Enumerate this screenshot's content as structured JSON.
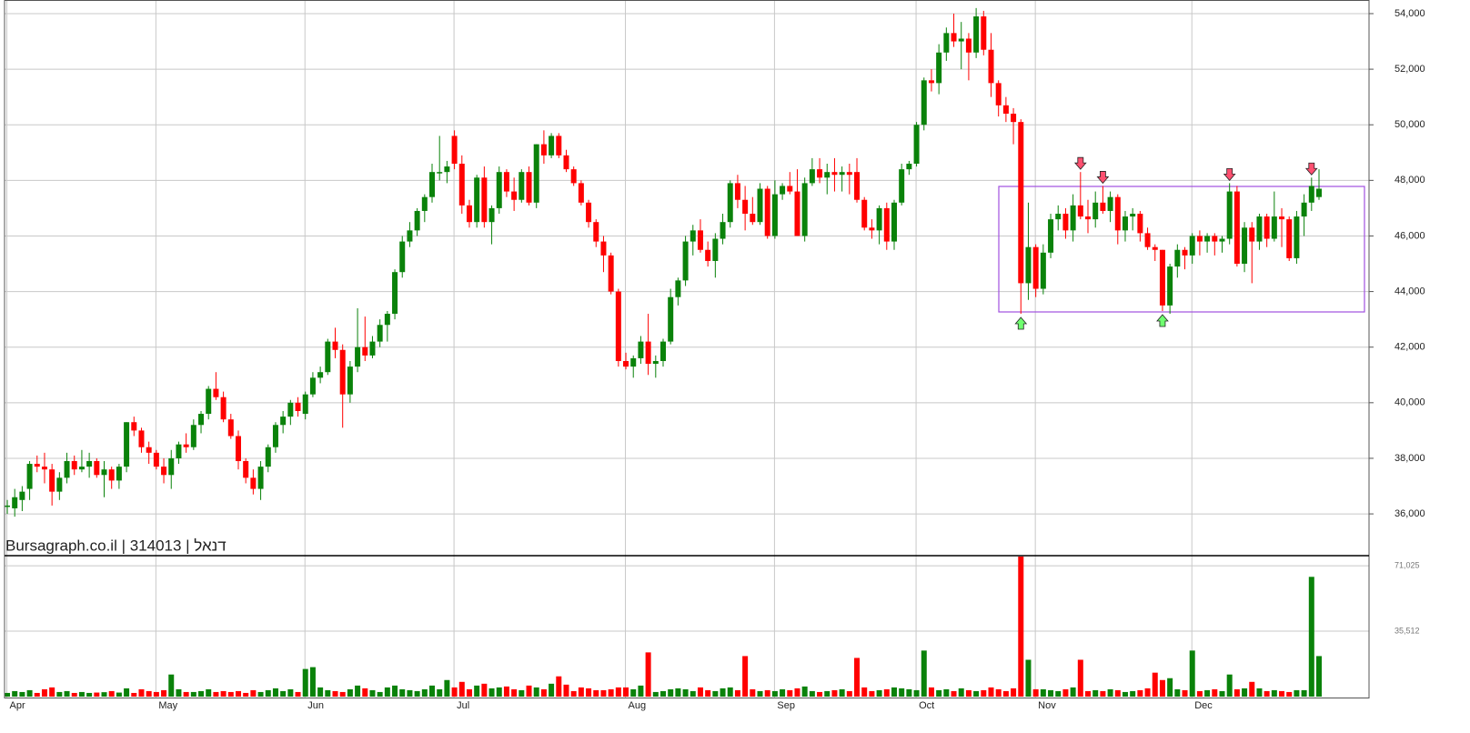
{
  "chart_data": {
    "type": "candlestick",
    "source_label": "Bursagraph.co.il | 314013 | דנאל",
    "categories": [
      "Apr",
      null,
      null,
      null,
      null,
      null,
      null,
      null,
      null,
      null,
      null,
      null,
      null,
      null,
      null,
      null,
      null,
      null,
      null,
      null,
      "May",
      null,
      null,
      null,
      null,
      null,
      null,
      null,
      null,
      null,
      null,
      null,
      null,
      null,
      null,
      null,
      null,
      null,
      null,
      null,
      "Jun",
      null,
      null,
      null,
      null,
      null,
      null,
      null,
      null,
      null,
      null,
      null,
      null,
      null,
      null,
      null,
      null,
      null,
      null,
      null,
      "Jul",
      null,
      null,
      null,
      null,
      null,
      null,
      null,
      null,
      null,
      null,
      null,
      null,
      null,
      null,
      null,
      null,
      null,
      null,
      null,
      null,
      null,
      null,
      "Aug",
      null,
      null,
      null,
      null,
      null,
      null,
      null,
      null,
      null,
      null,
      null,
      null,
      null,
      null,
      null,
      null,
      null,
      null,
      null,
      "Sep",
      null,
      null,
      null,
      null,
      null,
      null,
      null,
      null,
      null,
      null,
      null,
      null,
      null,
      null,
      null,
      null,
      null,
      null,
      "Oct",
      null,
      null,
      null,
      null,
      null,
      null,
      null,
      null,
      null,
      null,
      null,
      null,
      null,
      null,
      null,
      "Nov",
      null,
      null,
      null,
      null,
      null,
      null,
      null,
      null,
      null,
      null,
      null,
      null,
      null,
      null,
      null,
      null,
      null,
      null,
      null,
      null,
      "Dec",
      null,
      null,
      null,
      null,
      null,
      null,
      null,
      null,
      null,
      null,
      null,
      null,
      null,
      null,
      null,
      null,
      null
    ],
    "candles": [
      [
        36300,
        36500,
        36000,
        36300,
        2000
      ],
      [
        36200,
        36900,
        35900,
        36600,
        3000
      ],
      [
        36500,
        37000,
        36100,
        36800,
        2500
      ],
      [
        36900,
        37900,
        36500,
        37800,
        3500
      ],
      [
        37800,
        38100,
        37500,
        37700,
        2000
      ],
      [
        37700,
        38200,
        37100,
        37600,
        4000
      ],
      [
        37600,
        37800,
        36300,
        36800,
        5000
      ],
      [
        36800,
        37500,
        36500,
        37300,
        2500
      ],
      [
        37300,
        38200,
        37100,
        37900,
        3000
      ],
      [
        37900,
        38100,
        37400,
        37600,
        2000
      ],
      [
        37600,
        38300,
        37500,
        37700,
        2500
      ],
      [
        37700,
        38200,
        37300,
        37900,
        2000
      ],
      [
        37900,
        38000,
        37300,
        37400,
        2200
      ],
      [
        37400,
        37900,
        36600,
        37600,
        2400
      ],
      [
        37600,
        37700,
        36900,
        37200,
        3000
      ],
      [
        37200,
        37800,
        36900,
        37700,
        2200
      ],
      [
        37700,
        39300,
        37500,
        39300,
        4500
      ],
      [
        39300,
        39500,
        38800,
        39000,
        2000
      ],
      [
        39000,
        39100,
        38200,
        38400,
        4000
      ],
      [
        38400,
        38600,
        37800,
        38200,
        3000
      ],
      [
        38200,
        38300,
        37600,
        37700,
        2500
      ],
      [
        37700,
        38000,
        37100,
        37400,
        3500
      ],
      [
        37400,
        38300,
        36900,
        38000,
        12000
      ],
      [
        38000,
        38600,
        37800,
        38500,
        4000
      ],
      [
        38500,
        38900,
        38200,
        38400,
        2500
      ],
      [
        38400,
        39400,
        38300,
        39200,
        2500
      ],
      [
        39200,
        39700,
        38900,
        39600,
        3000
      ],
      [
        39600,
        40600,
        39400,
        40500,
        4000
      ],
      [
        40500,
        41100,
        40100,
        40200,
        2500
      ],
      [
        40200,
        40400,
        39300,
        39400,
        3000
      ],
      [
        39400,
        39600,
        38700,
        38800,
        2500
      ],
      [
        38800,
        39000,
        37600,
        37900,
        3000
      ],
      [
        37900,
        38000,
        37100,
        37300,
        2000
      ],
      [
        37300,
        37600,
        36700,
        36900,
        3500
      ],
      [
        36900,
        37900,
        36500,
        37700,
        2500
      ],
      [
        37700,
        38500,
        37500,
        38400,
        3500
      ],
      [
        38400,
        39300,
        38200,
        39200,
        4500
      ],
      [
        39200,
        39700,
        38900,
        39500,
        3000
      ],
      [
        39500,
        40100,
        39200,
        40000,
        4000
      ],
      [
        40000,
        40200,
        39500,
        39700,
        2500
      ],
      [
        39600,
        40400,
        39400,
        40300,
        15000
      ],
      [
        40300,
        41100,
        40200,
        40900,
        16000
      ],
      [
        40900,
        41300,
        40700,
        41100,
        5000
      ],
      [
        41100,
        42300,
        41000,
        42200,
        3500
      ],
      [
        42200,
        42700,
        41600,
        41900,
        3000
      ],
      [
        41900,
        42100,
        39100,
        40300,
        2500
      ],
      [
        40300,
        41500,
        40000,
        41300,
        4000
      ],
      [
        41300,
        43400,
        41100,
        42000,
        6000
      ],
      [
        42000,
        43100,
        41500,
        41700,
        4500
      ],
      [
        41700,
        42400,
        41600,
        42200,
        3500
      ],
      [
        42200,
        43000,
        42000,
        42800,
        2500
      ],
      [
        42800,
        43300,
        42200,
        43200,
        5000
      ],
      [
        43200,
        44800,
        43000,
        44700,
        6000
      ],
      [
        44700,
        46000,
        44500,
        45800,
        4000
      ],
      [
        45800,
        46500,
        45600,
        46200,
        3500
      ],
      [
        46200,
        47000,
        46000,
        46900,
        3000
      ],
      [
        46900,
        47500,
        46500,
        47400,
        4000
      ],
      [
        47400,
        48600,
        47200,
        48300,
        6000
      ],
      [
        48300,
        49600,
        48000,
        48300,
        4000
      ],
      [
        48300,
        48700,
        47900,
        48500,
        9000
      ],
      [
        49600,
        49800,
        48400,
        48600,
        5000
      ],
      [
        48600,
        48900,
        46800,
        47100,
        8000
      ],
      [
        47100,
        47300,
        46300,
        46500,
        4000
      ],
      [
        46500,
        48200,
        46300,
        48100,
        6000
      ],
      [
        48100,
        48500,
        46300,
        46500,
        7000
      ],
      [
        46500,
        47100,
        45700,
        47000,
        4500
      ],
      [
        47000,
        48500,
        46800,
        48300,
        5000
      ],
      [
        48300,
        48400,
        47400,
        47600,
        5500
      ],
      [
        47600,
        48100,
        46900,
        47300,
        4000
      ],
      [
        47300,
        48400,
        47200,
        48300,
        3500
      ],
      [
        48300,
        48500,
        47100,
        47200,
        6000
      ],
      [
        47200,
        49300,
        47000,
        49300,
        5000
      ],
      [
        49300,
        49800,
        48600,
        48900,
        4000
      ],
      [
        48900,
        49700,
        48800,
        49600,
        7000
      ],
      [
        49600,
        49700,
        48800,
        48900,
        11000
      ],
      [
        48900,
        49100,
        48300,
        48400,
        6500
      ],
      [
        48400,
        48500,
        47800,
        47900,
        3000
      ],
      [
        47900,
        48000,
        47100,
        47200,
        5000
      ],
      [
        47200,
        47300,
        46300,
        46500,
        4500
      ],
      [
        46500,
        46600,
        45600,
        45800,
        3500
      ],
      [
        45800,
        46000,
        44700,
        45300,
        3500
      ],
      [
        45300,
        45400,
        43900,
        44000,
        4000
      ],
      [
        44000,
        44100,
        41300,
        41500,
        5000
      ],
      [
        41500,
        41800,
        41200,
        41300,
        5000
      ],
      [
        41300,
        41700,
        40900,
        41600,
        4000
      ],
      [
        41600,
        42400,
        41400,
        42200,
        6000
      ],
      [
        42200,
        43200,
        41000,
        41400,
        24000
      ],
      [
        41400,
        41700,
        40900,
        41500,
        2500
      ],
      [
        41500,
        42300,
        41300,
        42200,
        3000
      ],
      [
        42200,
        44100,
        42100,
        43800,
        4000
      ],
      [
        43800,
        44500,
        43500,
        44400,
        4500
      ],
      [
        44400,
        46000,
        44200,
        45800,
        4000
      ],
      [
        45800,
        46400,
        45300,
        46200,
        3000
      ],
      [
        46200,
        46600,
        45400,
        45500,
        5000
      ],
      [
        45500,
        45800,
        44900,
        45100,
        3500
      ],
      [
        45100,
        46100,
        44500,
        45900,
        3000
      ],
      [
        45900,
        46800,
        45700,
        46500,
        4500
      ],
      [
        46500,
        48000,
        46300,
        47900,
        5000
      ],
      [
        47900,
        48200,
        47000,
        47300,
        3500
      ],
      [
        47300,
        47800,
        46200,
        46800,
        22000
      ],
      [
        46800,
        47400,
        46400,
        46500,
        4000
      ],
      [
        46500,
        47900,
        46400,
        47700,
        3000
      ],
      [
        47700,
        47800,
        45900,
        46000,
        3500
      ],
      [
        46000,
        48000,
        45900,
        47500,
        3000
      ],
      [
        47500,
        47900,
        47300,
        47800,
        4000
      ],
      [
        47800,
        48300,
        47500,
        47600,
        3500
      ],
      [
        47600,
        48400,
        46000,
        46000,
        4500
      ],
      [
        46000,
        48100,
        45800,
        47900,
        5500
      ],
      [
        47900,
        48800,
        47800,
        48400,
        3000
      ],
      [
        48400,
        48800,
        47900,
        48100,
        2500
      ],
      [
        48100,
        48600,
        47500,
        48300,
        3000
      ],
      [
        48300,
        48800,
        47600,
        48200,
        3500
      ],
      [
        48200,
        48500,
        47600,
        48300,
        4000
      ],
      [
        48300,
        48600,
        47500,
        48200,
        3000
      ],
      [
        48300,
        48800,
        47200,
        47300,
        21000
      ],
      [
        47300,
        47400,
        46200,
        46300,
        5000
      ],
      [
        46300,
        46600,
        45900,
        46200,
        3000
      ],
      [
        46200,
        47100,
        45700,
        47000,
        3500
      ],
      [
        47000,
        47200,
        45500,
        45800,
        4000
      ],
      [
        45800,
        47300,
        45500,
        47200,
        5000
      ],
      [
        47200,
        48600,
        47100,
        48400,
        4500
      ],
      [
        48400,
        48700,
        48200,
        48600,
        4000
      ],
      [
        48600,
        50100,
        48500,
        50000,
        3500
      ],
      [
        50000,
        51700,
        49800,
        51600,
        25000
      ],
      [
        51600,
        52000,
        51200,
        51500,
        5000
      ],
      [
        51500,
        52900,
        51100,
        52600,
        3500
      ],
      [
        52600,
        53500,
        52300,
        53300,
        4000
      ],
      [
        53300,
        54000,
        52800,
        53000,
        3000
      ],
      [
        53000,
        53700,
        52000,
        53100,
        4500
      ],
      [
        53100,
        53300,
        51600,
        52600,
        3500
      ],
      [
        52600,
        54200,
        52400,
        53900,
        3000
      ],
      [
        53900,
        54100,
        52500,
        52700,
        3500
      ],
      [
        52700,
        53300,
        51000,
        51500,
        5000
      ],
      [
        51500,
        51600,
        50300,
        50700,
        4000
      ],
      [
        50700,
        51000,
        50100,
        50400,
        3000
      ],
      [
        50400,
        50600,
        49300,
        50100,
        4500
      ],
      [
        50100,
        50200,
        43200,
        44300,
        76000
      ],
      [
        44300,
        47200,
        43700,
        45600,
        20000
      ],
      [
        45600,
        45700,
        43800,
        44100,
        4000
      ],
      [
        44100,
        45700,
        43900,
        45400,
        4000
      ],
      [
        45400,
        46800,
        45200,
        46600,
        3500
      ],
      [
        46600,
        47100,
        46200,
        46800,
        3000
      ],
      [
        46800,
        47000,
        45900,
        46200,
        4000
      ],
      [
        46200,
        47500,
        45800,
        47100,
        5000
      ],
      [
        47100,
        48300,
        46600,
        46700,
        20000
      ],
      [
        46700,
        47300,
        46100,
        46600,
        3000
      ],
      [
        46600,
        47600,
        46300,
        47200,
        3500
      ],
      [
        47200,
        47800,
        46800,
        46900,
        3000
      ],
      [
        46900,
        47600,
        46500,
        47400,
        4000
      ],
      [
        47400,
        47500,
        45700,
        46200,
        3500
      ],
      [
        46200,
        46900,
        45800,
        46700,
        2500
      ],
      [
        46700,
        47000,
        46200,
        46800,
        3000
      ],
      [
        46800,
        46900,
        45800,
        46100,
        3500
      ],
      [
        46100,
        46300,
        45500,
        45600,
        4500
      ],
      [
        45600,
        45700,
        45100,
        45500,
        13000
      ],
      [
        45500,
        45500,
        43300,
        43500,
        9000
      ],
      [
        43500,
        45000,
        43200,
        44900,
        10000
      ],
      [
        44900,
        45700,
        44500,
        45500,
        4000
      ],
      [
        45500,
        45600,
        44800,
        45300,
        3500
      ],
      [
        45300,
        46100,
        45000,
        46000,
        25000
      ],
      [
        46000,
        46200,
        45300,
        45800,
        3000
      ],
      [
        45800,
        46100,
        45400,
        46000,
        3500
      ],
      [
        46000,
        46100,
        45300,
        45800,
        4000
      ],
      [
        45800,
        46000,
        45400,
        45900,
        3000
      ],
      [
        45900,
        47900,
        45700,
        47600,
        12000
      ],
      [
        47600,
        47800,
        44900,
        45000,
        4000
      ],
      [
        45000,
        46500,
        44700,
        46300,
        4500
      ],
      [
        46300,
        46500,
        44300,
        45800,
        8000
      ],
      [
        45800,
        46800,
        45500,
        46700,
        4500
      ],
      [
        46700,
        46800,
        45600,
        45900,
        3000
      ],
      [
        45900,
        47600,
        45800,
        46700,
        3500
      ],
      [
        46700,
        47000,
        45600,
        46600,
        3000
      ],
      [
        46600,
        46700,
        45100,
        45200,
        2500
      ],
      [
        45200,
        46900,
        45000,
        46700,
        3500
      ],
      [
        46700,
        47500,
        46000,
        47200,
        3500
      ],
      [
        47200,
        48100,
        46900,
        47800,
        65000
      ],
      [
        47400,
        48400,
        47300,
        47700,
        22000
      ]
    ],
    "up_color": "#0a820a",
    "down_color": "#ff0000",
    "ylim": [
      34530,
      54490
    ],
    "yticks": [
      {
        "value": 36000,
        "label": "36,000"
      },
      {
        "value": 38000,
        "label": "38,000"
      },
      {
        "value": 40000,
        "label": "40,000"
      },
      {
        "value": 42000,
        "label": "42,000"
      },
      {
        "value": 44000,
        "label": "44,000"
      },
      {
        "value": 46000,
        "label": "46,000"
      },
      {
        "value": 48000,
        "label": "48,000"
      },
      {
        "value": 50000,
        "label": "50,000"
      },
      {
        "value": 52000,
        "label": "52,000"
      },
      {
        "value": 54000,
        "label": "54,000"
      }
    ],
    "volume_ylim": [
      0,
      76000
    ],
    "volume_yticks": [
      {
        "value": 35512,
        "label": "35,512"
      },
      {
        "value": 71025,
        "label": "71,025"
      }
    ],
    "grid": true
  }
}
